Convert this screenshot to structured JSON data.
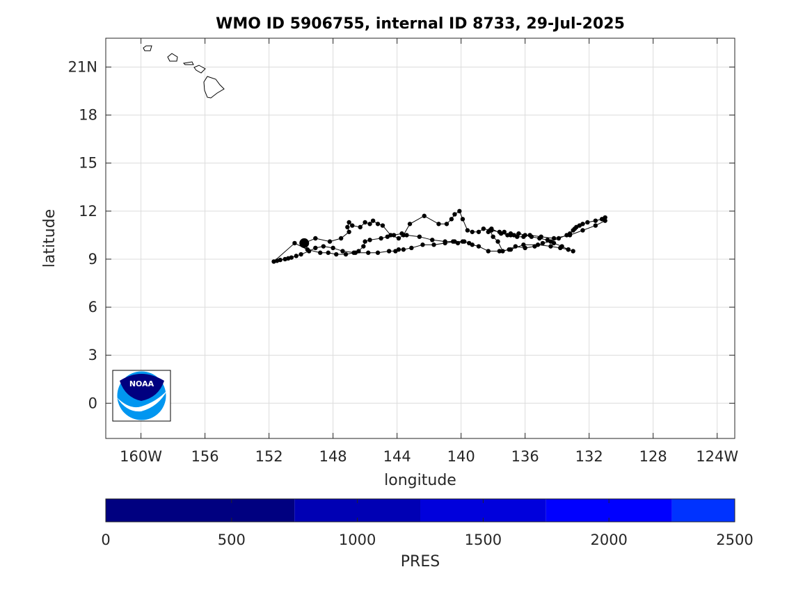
{
  "chart_data": {
    "type": "scatter",
    "title": "WMO ID 5906755, internal ID 8733, 29-Jul-2025",
    "xlabel": "longitude",
    "ylabel": "latitude",
    "grid": true,
    "xlim": [
      -162.2,
      -122.9
    ],
    "ylim": [
      -2.2,
      22.8
    ],
    "x_ticks": [
      -160,
      -156,
      -152,
      -148,
      -144,
      -140,
      -136,
      -132,
      -128,
      -124
    ],
    "x_tick_labels": [
      "160W",
      "156",
      "152",
      "148",
      "144",
      "140",
      "136",
      "132",
      "128",
      "124W"
    ],
    "y_ticks": [
      0,
      3,
      6,
      9,
      12,
      15,
      18,
      21
    ],
    "y_tick_labels": [
      "0",
      "3",
      "6",
      "9",
      "12",
      "15",
      "18",
      "21N"
    ],
    "series": [
      {
        "line_color": "#000000",
        "marker_color": "#000000",
        "start_marker": [
          -149.8,
          10.0
        ],
        "lon": [
          -149.8,
          -149.1,
          -148.2,
          -147.5,
          -147.0,
          -147.1,
          -147.0,
          -146.8,
          -146.3,
          -146.0,
          -145.7,
          -145.5,
          -145.2,
          -144.9,
          -144.4,
          -143.9,
          -143.6,
          -143.2,
          -142.3,
          -141.4,
          -140.9,
          -140.6,
          -140.4,
          -140.1,
          -139.9,
          -139.6,
          -139.3,
          -138.9,
          -138.6,
          -138.2,
          -138.0,
          -137.7,
          -137.4,
          -137.0,
          -136.6,
          -136.0,
          -135.4,
          -134.9,
          -134.4,
          -133.9,
          -133.4,
          -133.2,
          -133.0,
          -132.9,
          -132.8,
          -132.6,
          -132.4,
          -132.1,
          -131.6,
          -131.2,
          -131.0,
          -131.0,
          -131.6,
          -132.4,
          -133.2,
          -134.2,
          -135.0,
          -135.7,
          -136.1,
          -136.5,
          -136.7,
          -136.9,
          -137.1,
          -137.3,
          -137.6,
          -138.1,
          -138.3,
          -138.1,
          -137.5,
          -136.9,
          -136.4,
          -136.0,
          -135.6,
          -135.1,
          -134.6,
          -134.2,
          -133.7,
          -133.3,
          -133.0,
          -133.3,
          -133.8,
          -134.4,
          -135.2,
          -136.1,
          -136.9,
          -137.6,
          -138.3,
          -138.9,
          -139.3,
          -139.5,
          -139.8,
          -140.4,
          -141.0,
          -141.7,
          -142.4,
          -143.1,
          -143.6,
          -143.9,
          -144.1,
          -144.5,
          -145.2,
          -145.8,
          -146.6,
          -147.4,
          -148.0,
          -148.6,
          -149.1,
          -149.5,
          -150.0,
          -150.3,
          -150.6,
          -150.8,
          -151.0,
          -151.3,
          -151.5,
          -151.7,
          -150.4,
          -149.6,
          -148.8,
          -148.3,
          -147.8,
          -147.2,
          -146.7,
          -146.4,
          -146.1,
          -146.0,
          -145.7,
          -145.0,
          -144.6,
          -144.2,
          -143.7,
          -143.4,
          -142.6,
          -141.8,
          -141.0,
          -140.5,
          -140.2,
          -139.9
        ],
        "lat": [
          10.0,
          10.3,
          10.1,
          10.3,
          10.7,
          11.0,
          11.3,
          11.1,
          11.0,
          11.3,
          11.2,
          11.4,
          11.2,
          11.1,
          10.5,
          10.3,
          10.5,
          11.2,
          11.7,
          11.2,
          11.2,
          11.5,
          11.8,
          12.0,
          11.5,
          10.8,
          10.7,
          10.7,
          10.9,
          10.8,
          10.4,
          10.1,
          9.5,
          9.6,
          9.8,
          9.7,
          9.8,
          10.0,
          10.1,
          10.3,
          10.5,
          10.6,
          10.8,
          10.9,
          11.0,
          11.1,
          11.2,
          11.3,
          11.4,
          11.5,
          11.6,
          11.4,
          11.1,
          10.8,
          10.5,
          10.3,
          10.4,
          10.5,
          10.4,
          10.4,
          10.5,
          10.6,
          10.5,
          10.7,
          10.7,
          10.8,
          10.7,
          10.9,
          10.6,
          10.5,
          10.6,
          10.5,
          10.4,
          10.3,
          10.2,
          10.0,
          9.8,
          9.6,
          9.5,
          9.6,
          9.7,
          9.8,
          9.9,
          9.9,
          9.6,
          9.5,
          9.5,
          9.8,
          9.9,
          10.0,
          10.1,
          10.1,
          10.0,
          9.9,
          9.9,
          9.7,
          9.6,
          9.6,
          9.5,
          9.5,
          9.4,
          9.4,
          9.4,
          9.5,
          9.7,
          9.8,
          9.7,
          9.5,
          9.3,
          9.2,
          9.1,
          9.05,
          9.0,
          8.95,
          8.9,
          8.85,
          10.0,
          9.6,
          9.4,
          9.4,
          9.3,
          9.3,
          9.4,
          9.5,
          9.8,
          10.1,
          10.2,
          10.3,
          10.4,
          10.5,
          10.6,
          10.5,
          10.4,
          10.2,
          10.1,
          10.1,
          10.0,
          10.1
        ]
      }
    ],
    "colorbar": {
      "label": "PRES",
      "range": [
        0,
        2500
      ],
      "tick_values": [
        0,
        500,
        1000,
        1500,
        2000,
        2500
      ],
      "tick_labels": [
        "0",
        "500",
        "1000",
        "1500",
        "2000",
        "2500"
      ],
      "bands": [
        {
          "from": 0,
          "to": 750,
          "color": "#000080"
        },
        {
          "from": 750,
          "to": 1250,
          "color": "#0000B4"
        },
        {
          "from": 1250,
          "to": 1750,
          "color": "#0000DC"
        },
        {
          "from": 1750,
          "to": 2250,
          "color": "#0000FF"
        },
        {
          "from": 2250,
          "to": 2500,
          "color": "#0033FF"
        }
      ]
    }
  },
  "logo": {
    "text": "NOAA",
    "top_color": "#000080",
    "bottom_color": "#0096F0"
  }
}
